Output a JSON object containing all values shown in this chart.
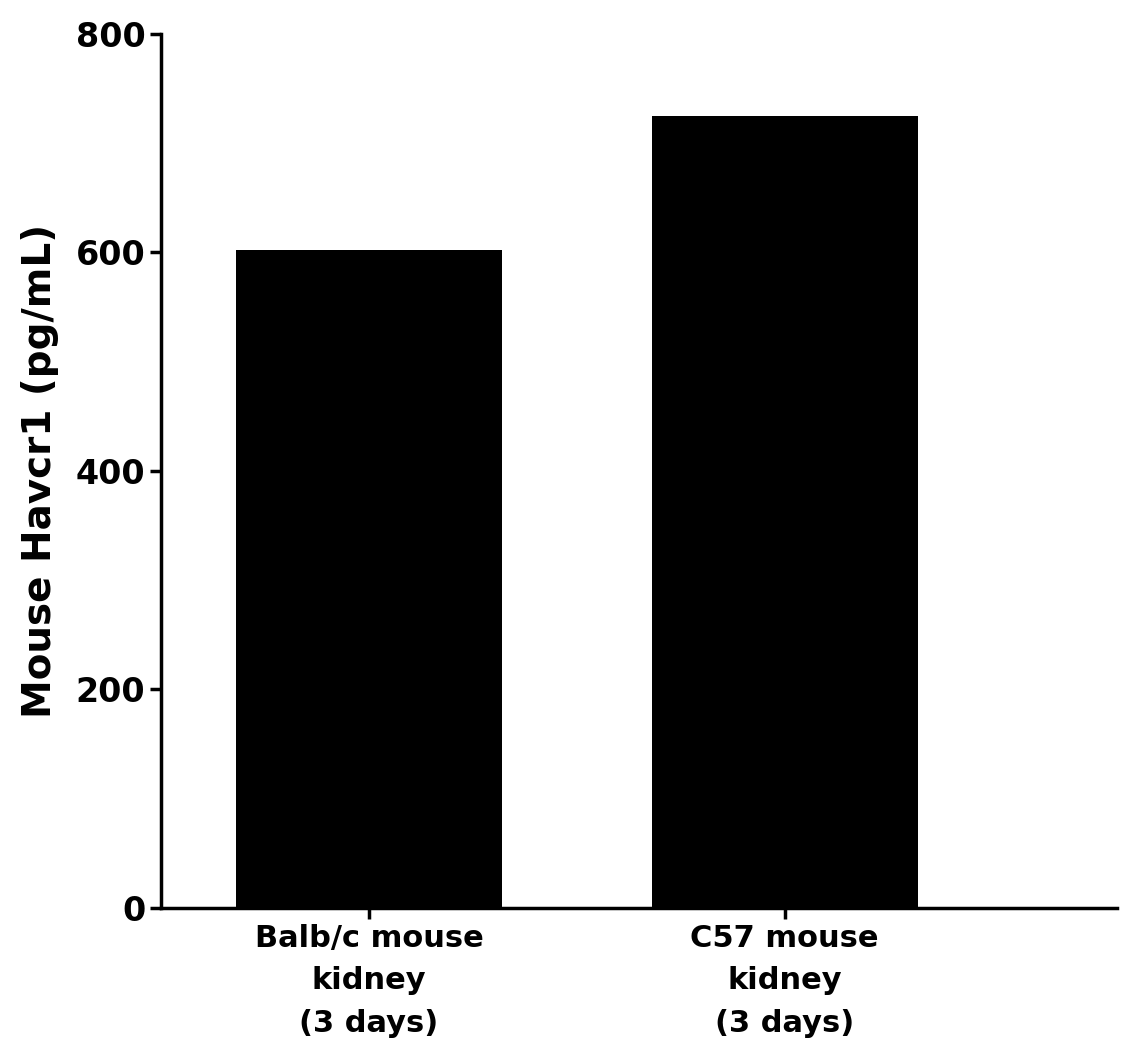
{
  "categories": [
    "Balb/c mouse\nkidney\n(3 days)",
    "C57 mouse\nkidney\n(3 days)"
  ],
  "values": [
    602.5,
    724.5
  ],
  "bar_color": "#000000",
  "bar_width": 0.32,
  "bar_positions": [
    0.25,
    0.75
  ],
  "xlim": [
    0,
    1.15
  ],
  "ylabel": "Mouse Havcr1 (pg/mL)",
  "ylim": [
    0,
    800
  ],
  "yticks": [
    0,
    200,
    400,
    600,
    800
  ],
  "background_color": "#ffffff",
  "ylabel_fontsize": 28,
  "tick_fontsize": 24,
  "xlabel_fontsize": 22
}
